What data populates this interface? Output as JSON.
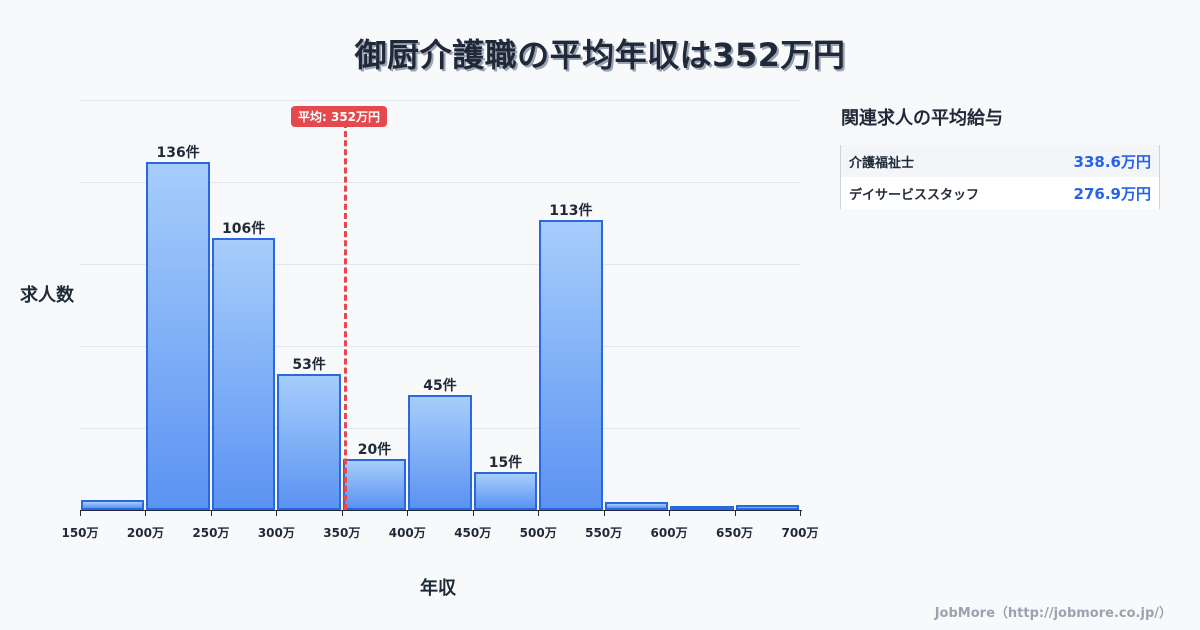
{
  "title": "御厨介護職の平均年収は352万円",
  "chart_data": {
    "type": "bar",
    "title": "御厨介護職の平均年収は352万円",
    "xlabel": "年収",
    "ylabel": "求人数",
    "categories": [
      "150-200万",
      "200-250万",
      "250-300万",
      "300-350万",
      "350-400万",
      "400-450万",
      "450-500万",
      "500-550万",
      "550-600万",
      "600-650万",
      "650-700万"
    ],
    "values": [
      4,
      136,
      106,
      53,
      20,
      45,
      15,
      113,
      3,
      1,
      2
    ],
    "labels": [
      "",
      "136件",
      "106件",
      "53件",
      "20件",
      "45件",
      "15件",
      "113件",
      "",
      "",
      ""
    ],
    "x_ticks": [
      "150万",
      "200万",
      "250万",
      "300万",
      "350万",
      "400万",
      "450万",
      "500万",
      "550万",
      "600万",
      "650万",
      "700万"
    ],
    "ylim": [
      0,
      160
    ],
    "grid": true,
    "average": {
      "value": 352,
      "label": "平均: 352万円"
    }
  },
  "sidebar": {
    "title": "関連求人の平均給与",
    "rows": [
      {
        "name": "介護福祉士",
        "value": "338.6万円"
      },
      {
        "name": "デイサービススタッフ",
        "value": "276.9万円"
      }
    ]
  },
  "footer": "JobMore（http://jobmore.co.jp/）"
}
